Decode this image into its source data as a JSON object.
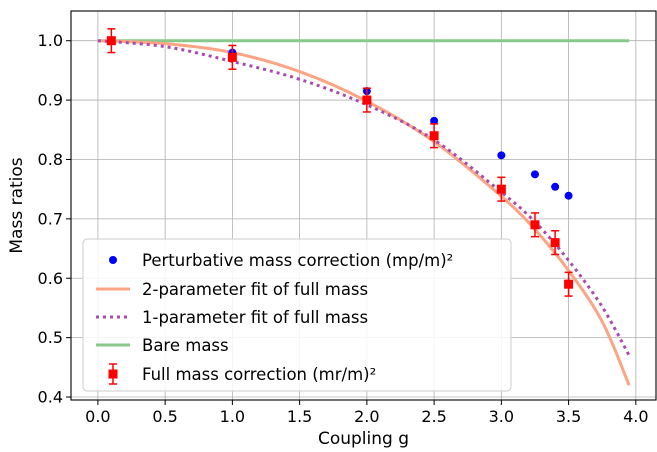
{
  "chart_data": {
    "type": "scatter",
    "xlabel": "Coupling g",
    "ylabel": "Mass ratios",
    "xlim": [
      -0.2,
      4.15
    ],
    "ylim": [
      0.395,
      1.05
    ],
    "xticks": [
      0.0,
      0.5,
      1.0,
      1.5,
      2.0,
      2.5,
      3.0,
      3.5,
      4.0
    ],
    "xtick_labels": [
      "0.0",
      "0.5",
      "1.0",
      "1.5",
      "2.0",
      "2.5",
      "3.0",
      "3.5",
      "4.0"
    ],
    "yticks": [
      0.4,
      0.5,
      0.6,
      0.7,
      0.8,
      0.9,
      1.0
    ],
    "ytick_labels": [
      "0.4",
      "0.5",
      "0.6",
      "0.7",
      "0.8",
      "0.9",
      "1.0"
    ],
    "grid": true,
    "legend_position": "lower-left",
    "series": [
      {
        "name": "Perturbative mass correction (mp/m)²",
        "style": "markers",
        "marker": "circle",
        "color": "#0000ff",
        "x": [
          0.1,
          1.0,
          2.0,
          2.5,
          3.0,
          3.25,
          3.4,
          3.5
        ],
        "y": [
          1.0,
          0.98,
          0.915,
          0.865,
          0.807,
          0.775,
          0.754,
          0.739
        ]
      },
      {
        "name": "2-parameter fit of full mass",
        "style": "solid-line",
        "color": "#fca483",
        "x": [
          0.0,
          0.5,
          1.0,
          1.5,
          2.0,
          2.5,
          3.0,
          3.25,
          3.5,
          3.75,
          3.95
        ],
        "y": [
          1.0,
          0.995,
          0.98,
          0.948,
          0.898,
          0.83,
          0.738,
          0.682,
          0.613,
          0.527,
          0.42
        ]
      },
      {
        "name": "1-parameter fit of full mass",
        "style": "dotted-line",
        "color": "#a84aae",
        "x": [
          0.0,
          0.5,
          1.0,
          1.5,
          2.0,
          2.5,
          3.0,
          3.25,
          3.5,
          3.75,
          3.95
        ],
        "y": [
          1.0,
          0.99,
          0.965,
          0.935,
          0.892,
          0.833,
          0.745,
          0.695,
          0.63,
          0.552,
          0.47
        ]
      },
      {
        "name": "Bare mass",
        "style": "solid-line",
        "color": "#86c98a",
        "x": [
          0.0,
          3.95
        ],
        "y": [
          1.0,
          1.0
        ]
      },
      {
        "name": "Full mass correction (mr/m)²",
        "style": "errorbar",
        "marker": "square",
        "color": "#ff0000",
        "x": [
          0.1,
          1.0,
          2.0,
          2.5,
          3.0,
          3.25,
          3.4,
          3.5
        ],
        "y": [
          1.0,
          0.972,
          0.9,
          0.84,
          0.75,
          0.69,
          0.66,
          0.59
        ],
        "yerr": [
          0.02,
          0.02,
          0.02,
          0.02,
          0.02,
          0.02,
          0.02,
          0.02
        ]
      }
    ]
  }
}
